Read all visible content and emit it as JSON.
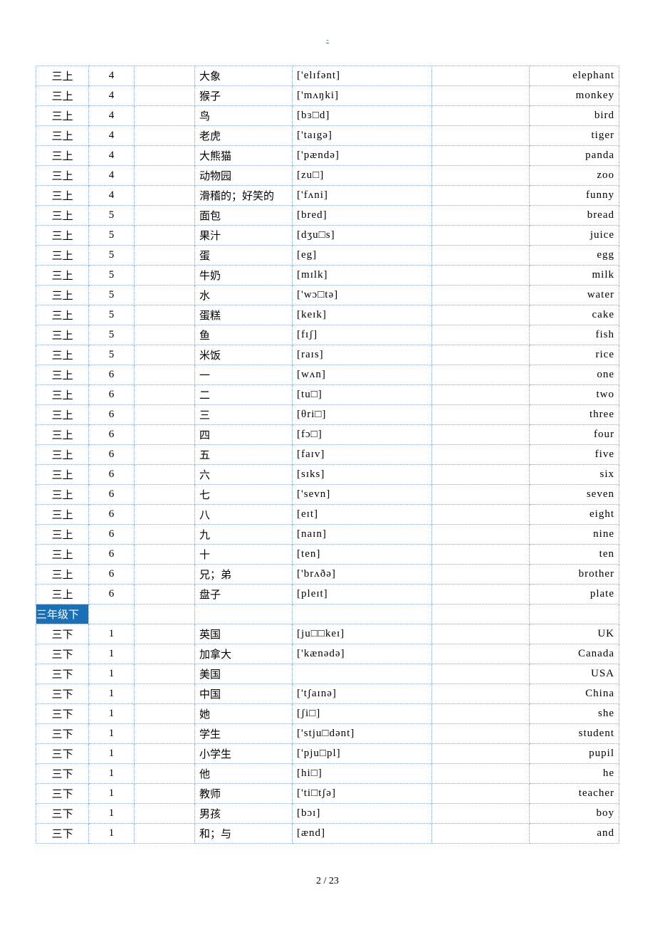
{
  "header_mark": "-",
  "columns": [
    "grade",
    "unit",
    "blank1",
    "chinese",
    "phonetic",
    "blank2",
    "english"
  ],
  "col_widths_pct": [
    8.5,
    7,
    10,
    17,
    25,
    17,
    15.5
  ],
  "highlight_row_index": 29,
  "highlight_bg": "#1a6fb5",
  "highlight_fg": "#ffffff",
  "border_color": "#8aa5c6",
  "border_style": "dotted",
  "font_family_body": "SimSun",
  "font_family_latin": "Times New Roman",
  "font_size_pt": 15,
  "rows": [
    {
      "grade": "三上",
      "unit": "4",
      "blank1": "",
      "chinese": "大象",
      "phonetic": "['elɪfənt]",
      "blank2": "",
      "english": "elephant"
    },
    {
      "grade": "三上",
      "unit": "4",
      "blank1": "",
      "chinese": "猴子",
      "phonetic": "['mʌŋki]",
      "blank2": "",
      "english": "monkey"
    },
    {
      "grade": "三上",
      "unit": "4",
      "blank1": "",
      "chinese": "鸟",
      "phonetic": "[bɜ□d]",
      "blank2": "",
      "english": "bird"
    },
    {
      "grade": "三上",
      "unit": "4",
      "blank1": "",
      "chinese": "老虎",
      "phonetic": "['taɪgə]",
      "blank2": "",
      "english": "tiger"
    },
    {
      "grade": "三上",
      "unit": "4",
      "blank1": "",
      "chinese": "大熊猫",
      "phonetic": "['pændə]",
      "blank2": "",
      "english": "panda"
    },
    {
      "grade": "三上",
      "unit": "4",
      "blank1": "",
      "chinese": "动物园",
      "phonetic": "[zu□]",
      "blank2": "",
      "english": "zoo"
    },
    {
      "grade": "三上",
      "unit": "4",
      "blank1": "",
      "chinese": "滑稽的；好笑的",
      "phonetic": "['fʌni]",
      "blank2": "",
      "english": "funny"
    },
    {
      "grade": "三上",
      "unit": "5",
      "blank1": "",
      "chinese": "面包",
      "phonetic": "[bred]",
      "blank2": "",
      "english": "bread"
    },
    {
      "grade": "三上",
      "unit": "5",
      "blank1": "",
      "chinese": "果汁",
      "phonetic": "[dʒu□s]",
      "blank2": "",
      "english": "juice"
    },
    {
      "grade": "三上",
      "unit": "5",
      "blank1": "",
      "chinese": "蛋",
      "phonetic": "[eg]",
      "blank2": "",
      "english": "egg"
    },
    {
      "grade": "三上",
      "unit": "5",
      "blank1": "",
      "chinese": "牛奶",
      "phonetic": "[mɪlk]",
      "blank2": "",
      "english": "milk"
    },
    {
      "grade": "三上",
      "unit": "5",
      "blank1": "",
      "chinese": "水",
      "phonetic": "['wɔ□tə]",
      "blank2": "",
      "english": "water"
    },
    {
      "grade": "三上",
      "unit": "5",
      "blank1": "",
      "chinese": "蛋糕",
      "phonetic": "[keɪk]",
      "blank2": "",
      "english": "cake"
    },
    {
      "grade": "三上",
      "unit": "5",
      "blank1": "",
      "chinese": "鱼",
      "phonetic": "[fɪʃ]",
      "blank2": "",
      "english": "fish"
    },
    {
      "grade": "三上",
      "unit": "5",
      "blank1": "",
      "chinese": "米饭",
      "phonetic": "[raɪs]",
      "blank2": "",
      "english": "rice"
    },
    {
      "grade": "三上",
      "unit": "6",
      "blank1": "",
      "chinese": "一",
      "phonetic": "[wʌn]",
      "blank2": "",
      "english": "one"
    },
    {
      "grade": "三上",
      "unit": "6",
      "blank1": "",
      "chinese": "二",
      "phonetic": "[tu□]",
      "blank2": "",
      "english": "two"
    },
    {
      "grade": "三上",
      "unit": "6",
      "blank1": "",
      "chinese": "三",
      "phonetic": "[θri□]",
      "blank2": "",
      "english": "three"
    },
    {
      "grade": "三上",
      "unit": "6",
      "blank1": "",
      "chinese": "四",
      "phonetic": "[fɔ□]",
      "blank2": "",
      "english": "four"
    },
    {
      "grade": "三上",
      "unit": "6",
      "blank1": "",
      "chinese": "五",
      "phonetic": "[faɪv]",
      "blank2": "",
      "english": "five"
    },
    {
      "grade": "三上",
      "unit": "6",
      "blank1": "",
      "chinese": "六",
      "phonetic": "[sɪks]",
      "blank2": "",
      "english": "six"
    },
    {
      "grade": "三上",
      "unit": "6",
      "blank1": "",
      "chinese": "七",
      "phonetic": "['sevn]",
      "blank2": "",
      "english": "seven"
    },
    {
      "grade": "三上",
      "unit": "6",
      "blank1": "",
      "chinese": "八",
      "phonetic": "[eɪt]",
      "blank2": "",
      "english": "eight"
    },
    {
      "grade": "三上",
      "unit": "6",
      "blank1": "",
      "chinese": "九",
      "phonetic": "[naɪn]",
      "blank2": "",
      "english": "nine"
    },
    {
      "grade": "三上",
      "unit": "6",
      "blank1": "",
      "chinese": "十",
      "phonetic": "[ten]",
      "blank2": "",
      "english": "ten"
    },
    {
      "grade": "三上",
      "unit": "6",
      "blank1": "",
      "chinese": "兄；弟",
      "phonetic": "['brʌðə]",
      "blank2": "",
      "english": "brother"
    },
    {
      "grade": "三上",
      "unit": "6",
      "blank1": "",
      "chinese": "盘子",
      "phonetic": "[pleɪt]",
      "blank2": "",
      "english": "plate"
    },
    {
      "grade": "三年级下",
      "unit": "",
      "blank1": "",
      "chinese": "",
      "phonetic": "",
      "blank2": "",
      "english": ""
    },
    {
      "grade": "三下",
      "unit": "1",
      "blank1": "",
      "chinese": "英国",
      "phonetic": "[ju□□keɪ]",
      "blank2": "",
      "english": "UK"
    },
    {
      "grade": "三下",
      "unit": "1",
      "blank1": "",
      "chinese": "加拿大",
      "phonetic": "['kænədə]",
      "blank2": "",
      "english": "Canada"
    },
    {
      "grade": "三下",
      "unit": "1",
      "blank1": "",
      "chinese": "美国",
      "phonetic": "",
      "blank2": "",
      "english": "USA"
    },
    {
      "grade": "三下",
      "unit": "1",
      "blank1": "",
      "chinese": "中国",
      "phonetic": "['tʃaɪnə]",
      "blank2": "",
      "english": "China"
    },
    {
      "grade": "三下",
      "unit": "1",
      "blank1": "",
      "chinese": "她",
      "phonetic": "[ʃi□]",
      "blank2": "",
      "english": "she"
    },
    {
      "grade": "三下",
      "unit": "1",
      "blank1": "",
      "chinese": "学生",
      "phonetic": "['stju□dənt]",
      "blank2": "",
      "english": "student"
    },
    {
      "grade": "三下",
      "unit": "1",
      "blank1": "",
      "chinese": "小学生",
      "phonetic": "['pju□pl]",
      "blank2": "",
      "english": "pupil"
    },
    {
      "grade": "三下",
      "unit": "1",
      "blank1": "",
      "chinese": "他",
      "phonetic": "[hi□]",
      "blank2": "",
      "english": "he"
    },
    {
      "grade": "三下",
      "unit": "1",
      "blank1": "",
      "chinese": "教师",
      "phonetic": "['ti□tʃə]",
      "blank2": "",
      "english": "teacher"
    },
    {
      "grade": "三下",
      "unit": "1",
      "blank1": "",
      "chinese": "男孩",
      "phonetic": "[bɔɪ]",
      "blank2": "",
      "english": "boy"
    },
    {
      "grade": "三下",
      "unit": "1",
      "blank1": "",
      "chinese": "和；与",
      "phonetic": "[ænd]",
      "blank2": "",
      "english": "and"
    }
  ],
  "footer": "2 / 23"
}
